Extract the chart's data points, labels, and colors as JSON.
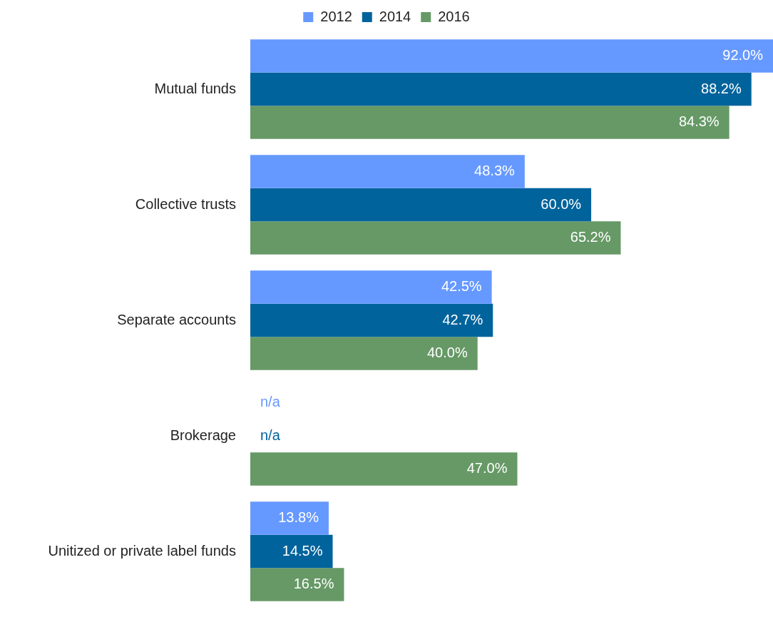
{
  "chart_data": {
    "type": "bar",
    "orientation": "horizontal",
    "categories": [
      "Mutual funds",
      "Collective trusts",
      "Separate accounts",
      "Brokerage",
      "Unitized or private label funds"
    ],
    "series": [
      {
        "name": "2012",
        "color": "#6699ff",
        "values": [
          92.0,
          48.3,
          42.5,
          null,
          13.8
        ],
        "value_labels": [
          "92.0%",
          "48.3%",
          "42.5%",
          "n/a",
          "13.8%"
        ]
      },
      {
        "name": "2014",
        "color": "#00639c",
        "values": [
          88.2,
          60.0,
          42.7,
          null,
          14.5
        ],
        "value_labels": [
          "88.2%",
          "60.0%",
          "42.7%",
          "n/a",
          "14.5%"
        ]
      },
      {
        "name": "2016",
        "color": "#669966",
        "values": [
          84.3,
          65.2,
          40.0,
          47.0,
          16.5
        ],
        "value_labels": [
          "84.3%",
          "65.2%",
          "40.0%",
          "47.0%",
          "16.5%"
        ]
      }
    ],
    "xlim": [
      0,
      92
    ],
    "grid": false,
    "legend": "top",
    "tick_labels": "y"
  }
}
